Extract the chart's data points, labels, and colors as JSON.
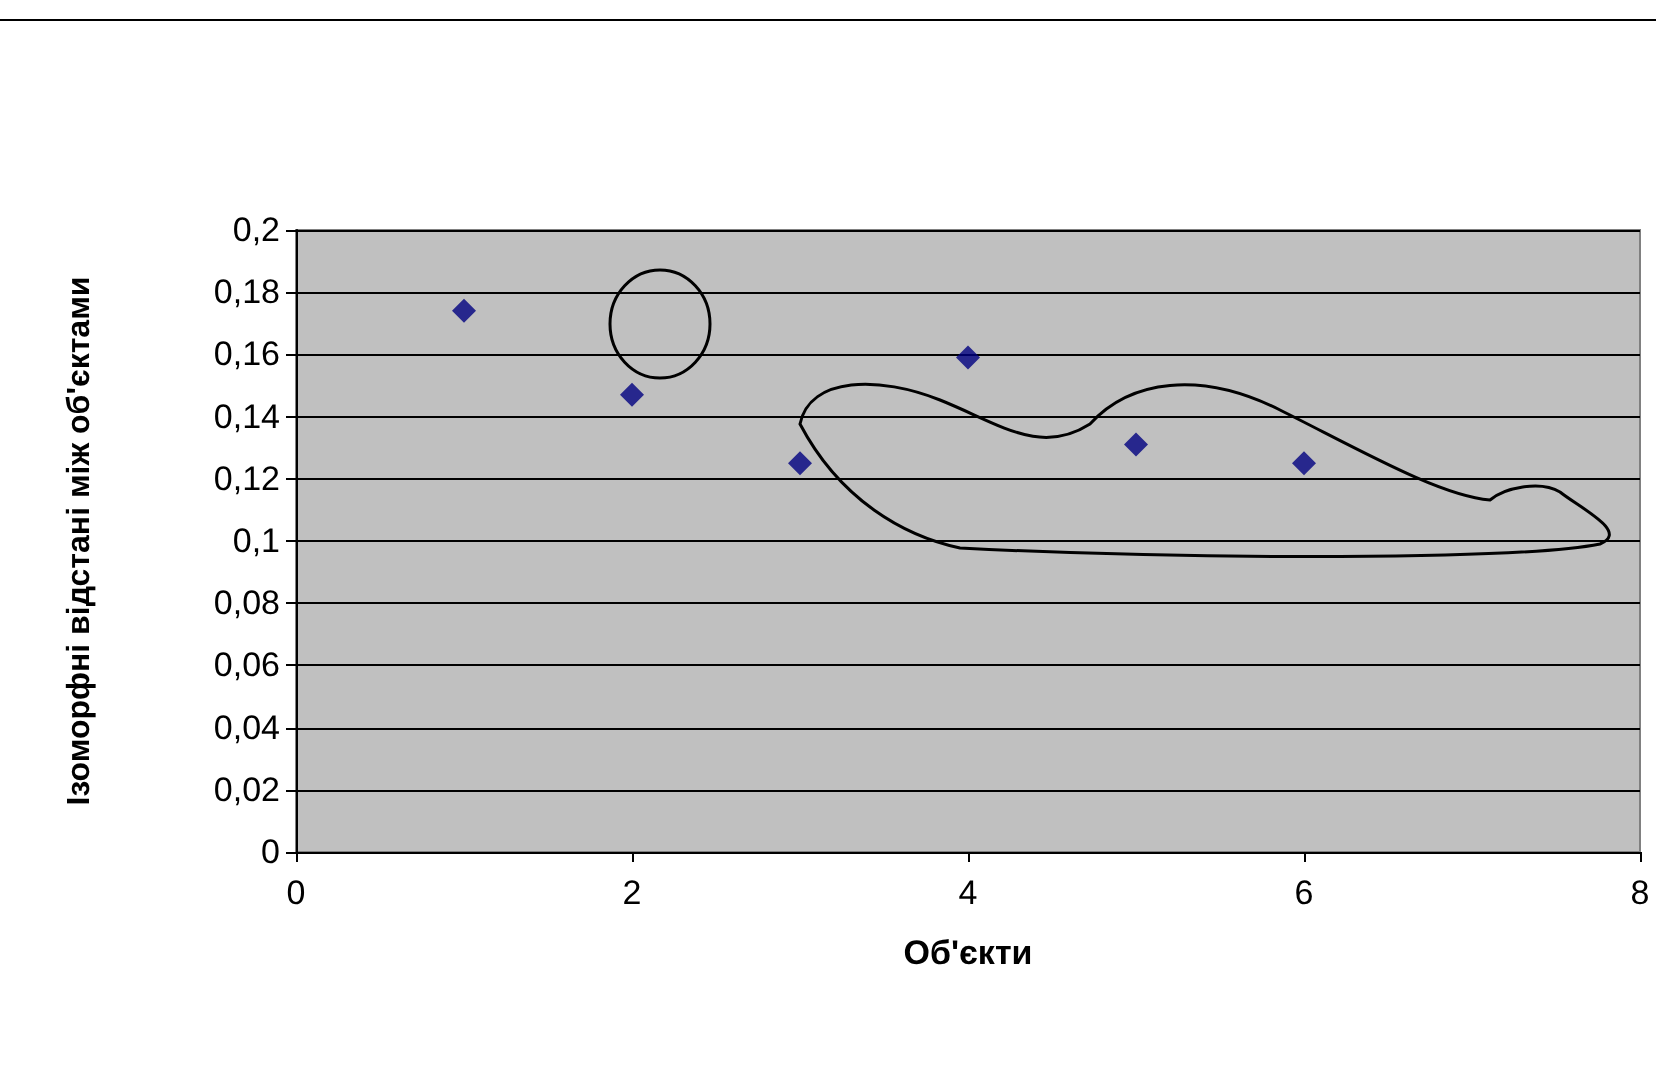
{
  "chart_data": {
    "type": "scatter",
    "xlabel": "Об'єкти",
    "ylabel": "Ізоморфні відстані між об'єктами",
    "x": [
      1,
      2,
      3,
      4,
      5,
      6
    ],
    "series": [
      {
        "color": "#000080",
        "values": [
          0.174,
          0.147,
          0.125,
          0.159,
          0.131,
          0.125
        ]
      }
    ],
    "xlim": [
      0,
      8
    ],
    "xticks": [
      0,
      2,
      4,
      6,
      8
    ],
    "ylim": [
      0,
      0.2
    ],
    "yticks": [
      {
        "value": 0,
        "label": "0"
      },
      {
        "value": 0.02,
        "label": "0,02"
      },
      {
        "value": 0.04,
        "label": "0,04"
      },
      {
        "value": 0.06,
        "label": "0,06"
      },
      {
        "value": 0.08,
        "label": "0,08"
      },
      {
        "value": 0.1,
        "label": "0,1"
      },
      {
        "value": 0.12,
        "label": "0,12"
      },
      {
        "value": 0.14,
        "label": "0,14"
      },
      {
        "value": 0.16,
        "label": "0,16"
      },
      {
        "value": 0.18,
        "label": "0,18"
      },
      {
        "value": 0.2,
        "label": "0,2"
      }
    ],
    "grid": "y",
    "marker": "diamond"
  }
}
